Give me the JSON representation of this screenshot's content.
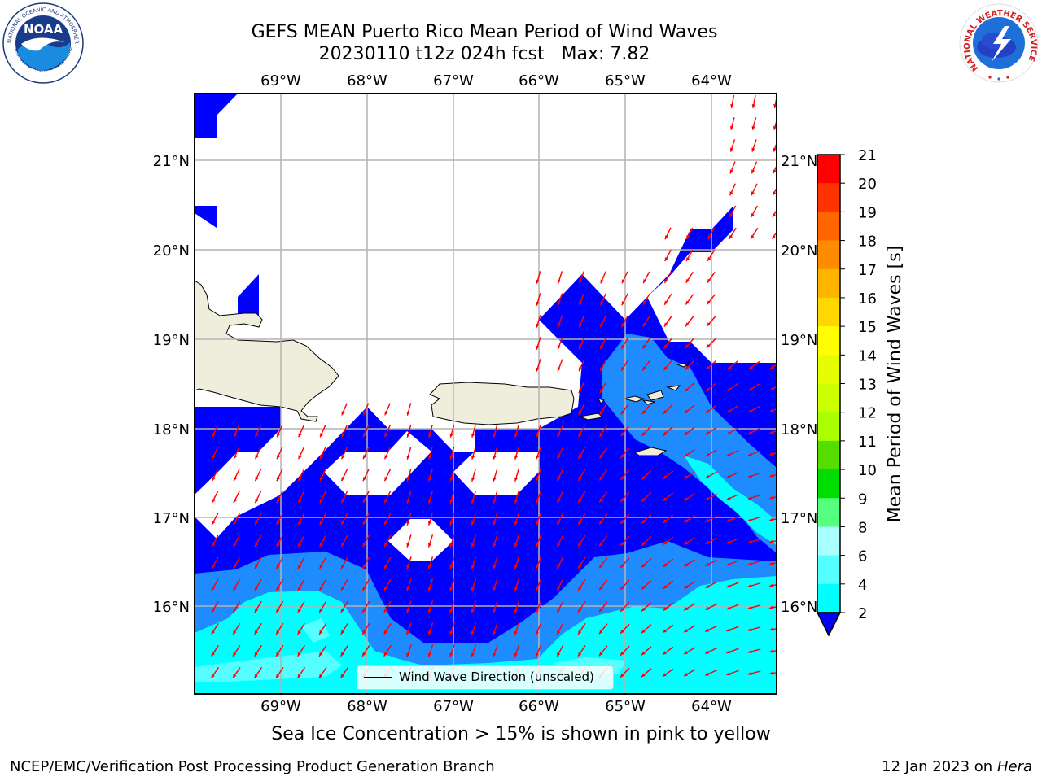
{
  "title": {
    "line1": "GEFS MEAN Puerto Rico Mean Period of Wind Waves",
    "line2": "20230110 t12z 024h fcst   Max: 7.82"
  },
  "logos": {
    "noaa_text": "NOAA",
    "noaa_ring_text": "NATIONAL OCEANIC AND ATMOSPHERIC ADMINISTRATION",
    "noaa_ring_text_bottom": "U.S. DEPARTMENT OF COMMERCE",
    "nws_ring_text": "NATIONAL WEATHER SERVICE"
  },
  "map": {
    "lon_labels": [
      "69°W",
      "68°W",
      "67°W",
      "66°W",
      "65°W",
      "64°W"
    ],
    "lat_labels_left": [
      "21°N",
      "20°N",
      "19°N",
      "18°N",
      "17°N",
      "16°N"
    ],
    "lat_labels_right": [
      "21°N",
      "20°N",
      "19°N",
      "18°N",
      "17°N",
      "16°N"
    ],
    "colors": {
      "land": "#efeedc",
      "band_2_4": "#0000ff",
      "band_4_6": "#1e8cff",
      "band_6_8": "#00ffff",
      "band_8_9": "#55ffff",
      "arrow": "#ff0000",
      "grid": "#b4b4b4"
    },
    "legend_label": "Wind Wave Direction (unscaled)"
  },
  "colorbar": {
    "title": "Mean Period of Wind Waves [s]",
    "ticks": [
      "21",
      "20",
      "19",
      "18",
      "17",
      "16",
      "15",
      "14",
      "13",
      "12",
      "11",
      "10",
      "9",
      "8",
      "6",
      "4",
      "2"
    ],
    "colors": [
      "#ff0000",
      "#ff3300",
      "#ff6600",
      "#ff8c00",
      "#ffb400",
      "#ffd700",
      "#ffff00",
      "#e6ff00",
      "#ccff00",
      "#aaff00",
      "#55dd00",
      "#00dd00",
      "#55ff7f",
      "#aaffff",
      "#55ffff",
      "#00ffff",
      "#1e8cff",
      "#0000ff"
    ]
  },
  "notes": {
    "ice": "Sea Ice Concentration > 15% is shown in pink to yellow",
    "footer_left": "NCEP/EMC/Verification Post Processing Product Generation Branch",
    "footer_right_prefix": "12 Jan 2023 on ",
    "footer_right_host": "Hera"
  }
}
